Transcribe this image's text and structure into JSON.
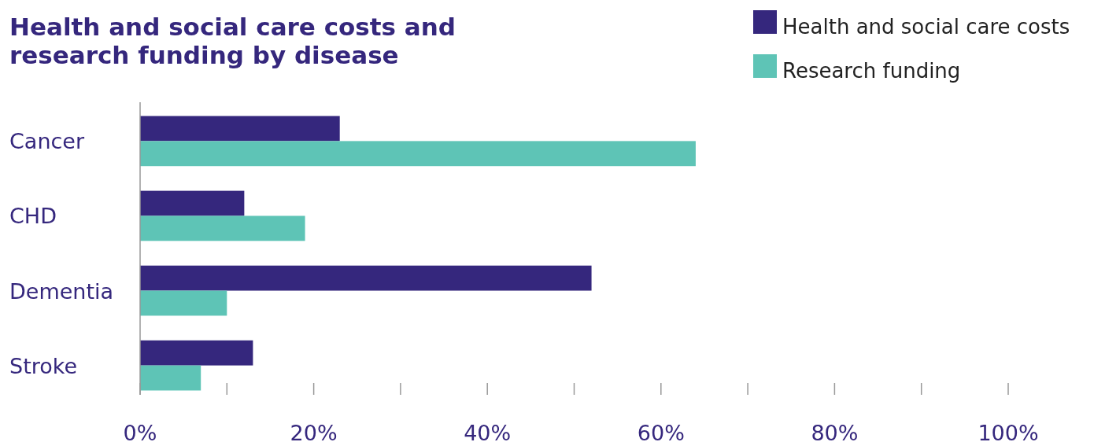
{
  "chart_data": {
    "type": "bar",
    "orientation": "horizontal",
    "title": "Health and social care costs and\nresearch funding by disease",
    "categories": [
      "Cancer",
      "CHD",
      "Dementia",
      "Stroke"
    ],
    "series": [
      {
        "name": "Health and social care costs",
        "color": "#35277d",
        "values": [
          23,
          12,
          52,
          13
        ]
      },
      {
        "name": "Research funding",
        "color": "#5ec4b6",
        "values": [
          64,
          19,
          10,
          7
        ]
      }
    ],
    "xlim": [
      0,
      100
    ],
    "xticks": [
      {
        "value": 0,
        "label": "0%"
      },
      {
        "value": 10,
        "label": null
      },
      {
        "value": 20,
        "label": "20%"
      },
      {
        "value": 30,
        "label": null
      },
      {
        "value": 40,
        "label": "40%"
      },
      {
        "value": 50,
        "label": null
      },
      {
        "value": 60,
        "label": "60%"
      },
      {
        "value": 70,
        "label": null
      },
      {
        "value": 80,
        "label": "80%"
      },
      {
        "value": 90,
        "label": null
      },
      {
        "value": 100,
        "label": "100%"
      }
    ],
    "legend": "top right",
    "grid": false
  }
}
